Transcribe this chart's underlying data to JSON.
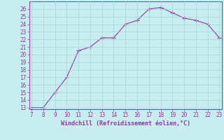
{
  "x": [
    7,
    8,
    9,
    10,
    11,
    12,
    13,
    14,
    15,
    16,
    17,
    18,
    19,
    20,
    21,
    22,
    23
  ],
  "y": [
    13,
    13,
    15,
    17,
    20.5,
    21,
    22.2,
    22.2,
    24,
    24.5,
    26,
    26.2,
    25.5,
    24.8,
    24.5,
    24,
    22.2
  ],
  "xlabel": "Windchill (Refroidissement éolien,°C)",
  "ylim_min": 13,
  "ylim_max": 27,
  "xlim_min": 7,
  "xlim_max": 23,
  "yticks": [
    13,
    14,
    15,
    16,
    17,
    18,
    19,
    20,
    21,
    22,
    23,
    24,
    25,
    26
  ],
  "xticks": [
    7,
    8,
    9,
    10,
    11,
    12,
    13,
    14,
    15,
    16,
    17,
    18,
    19,
    20,
    21,
    22,
    23
  ],
  "line_color": "#993399",
  "bg_color": "#c6eef0",
  "grid_color": "#aad4d8",
  "xlabel_color": "#993399",
  "tick_color": "#993399",
  "spine_color": "#993399",
  "marker_size": 2.5,
  "tick_fontsize": 5.5,
  "xlabel_fontsize": 6.0
}
